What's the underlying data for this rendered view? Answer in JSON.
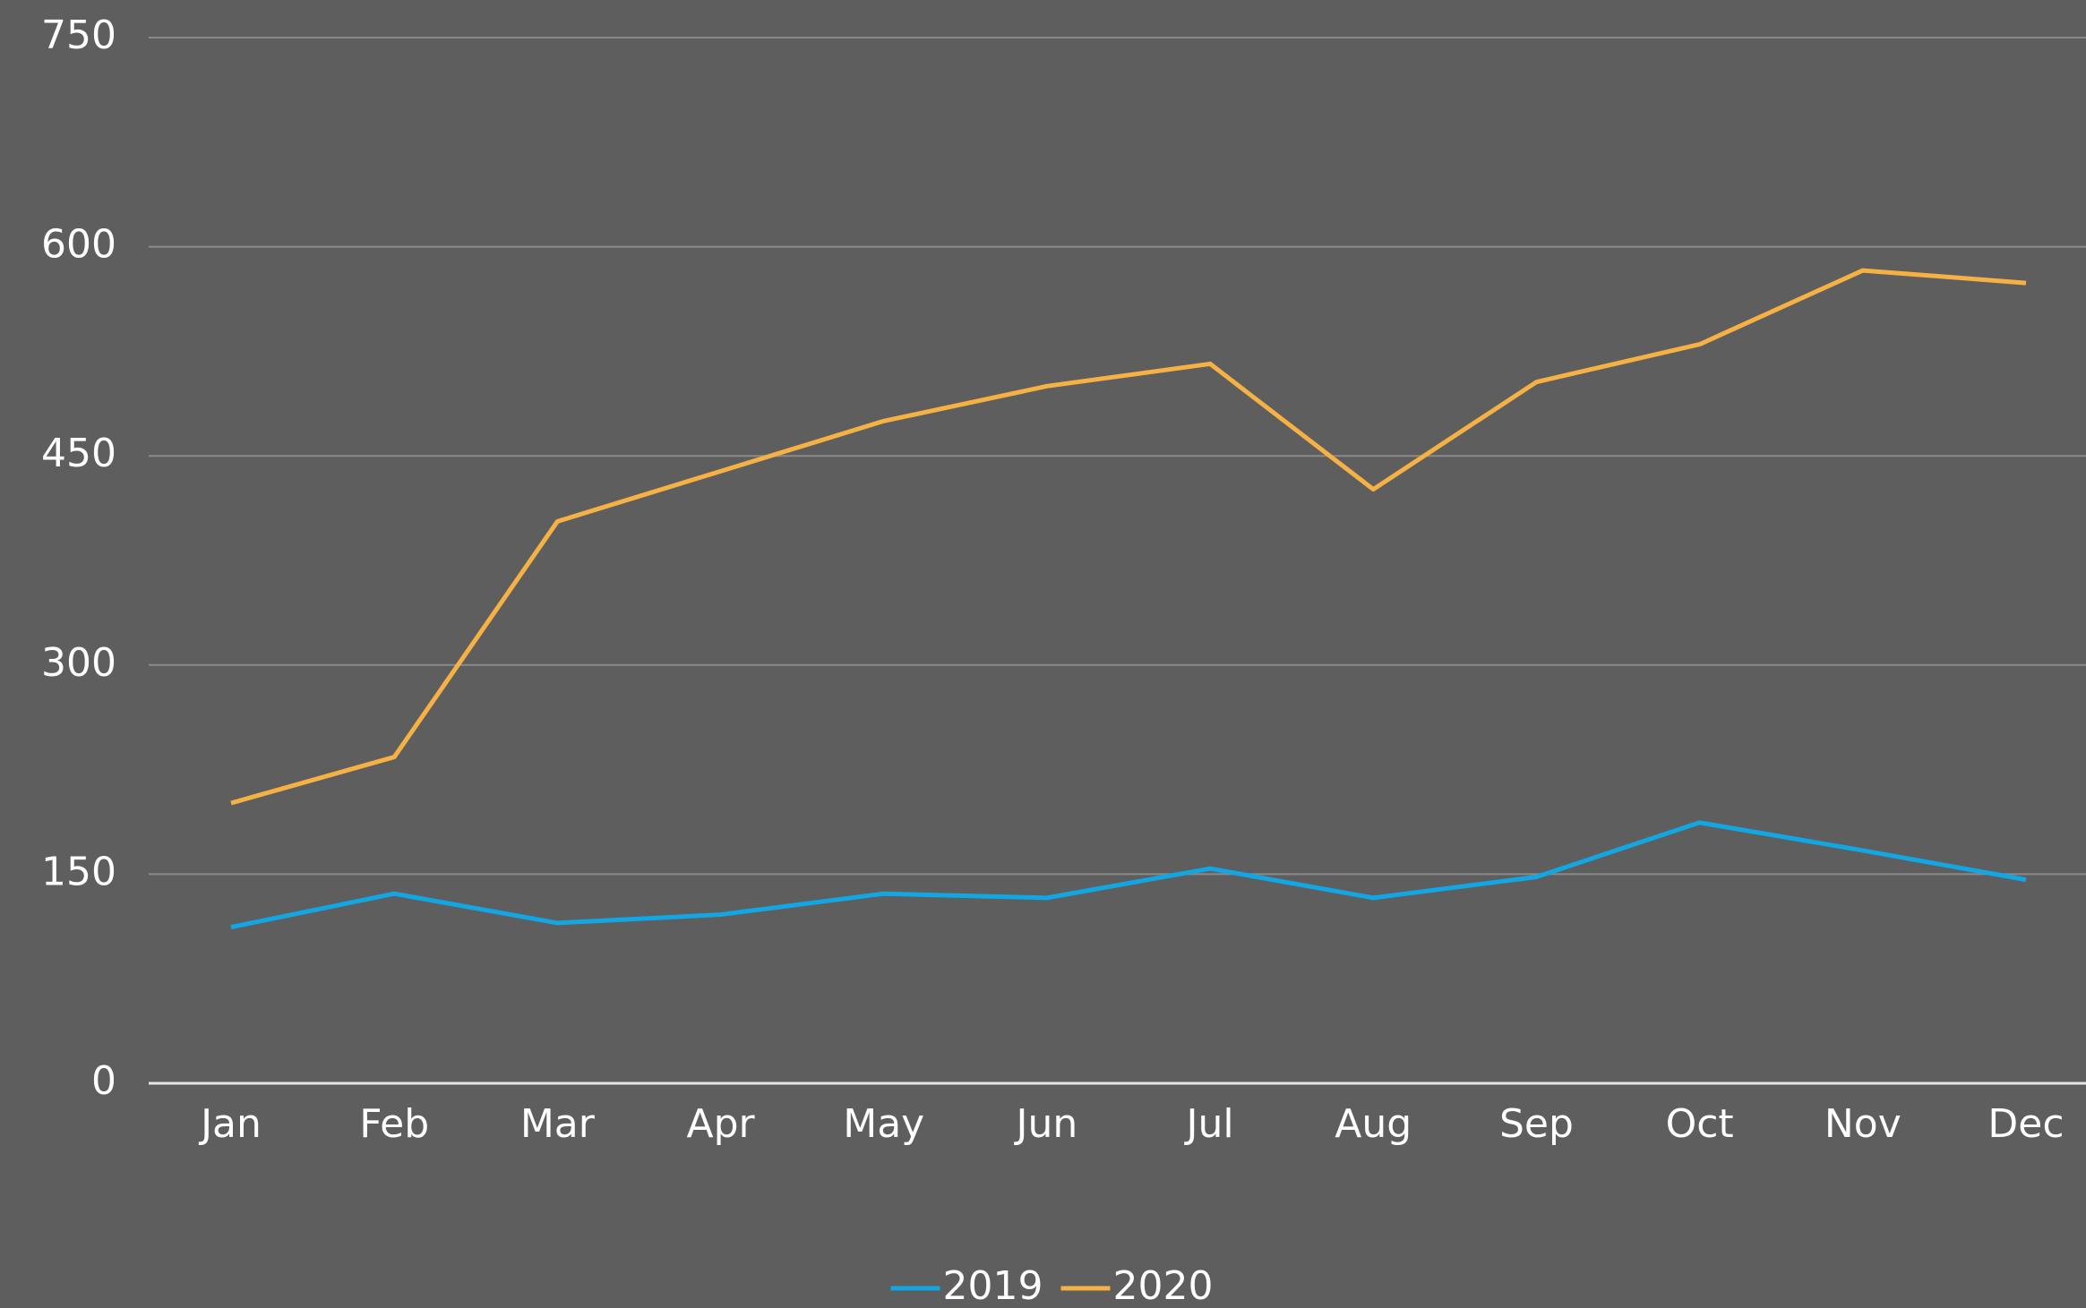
{
  "chart_data": {
    "type": "line",
    "categories": [
      "Jan",
      "Feb",
      "Mar",
      "Apr",
      "May",
      "Jun",
      "Jul",
      "Aug",
      "Sep",
      "Oct",
      "Nov",
      "Dec"
    ],
    "series": [
      {
        "name": "2019",
        "color": "#12a6e3",
        "values": [
          112,
          136,
          115,
          121,
          136,
          133,
          154,
          133,
          148,
          187,
          167,
          146
        ]
      },
      {
        "name": "2020",
        "color": "#f6b145",
        "values": [
          201,
          234,
          403,
          439,
          475,
          500,
          516,
          426,
          503,
          530,
          583,
          574
        ]
      }
    ],
    "ylim": [
      0,
      750
    ],
    "yticks": [
      0,
      150,
      300,
      450,
      600,
      750
    ],
    "grid": true,
    "legend": "bottom"
  }
}
